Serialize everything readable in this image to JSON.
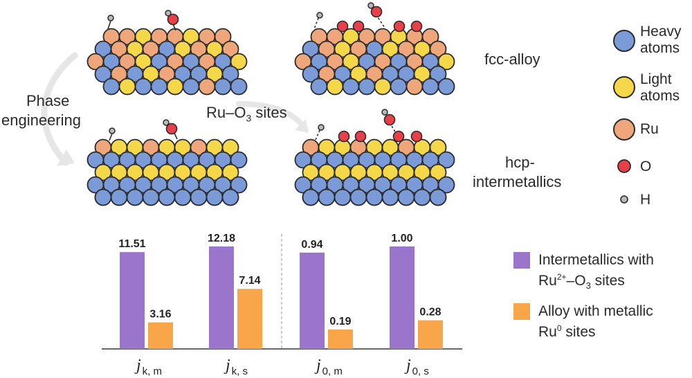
{
  "labels": {
    "fcc": "fcc-alloy",
    "hcp_line1": "hcp-",
    "hcp_line2": "intermetallics",
    "phase_line1": "Phase",
    "phase_line2": "engineering",
    "ru_o3_prefix": "Ru–O",
    "ru_o3_sub": "3",
    "ru_o3_suffix": " sites"
  },
  "atom_legend": {
    "heavy_1": "Heavy",
    "heavy_2": "atoms",
    "light_1": "Light",
    "light_2": "atoms",
    "ru": "Ru",
    "o": "O",
    "h": "H"
  },
  "colors": {
    "heavy": "#7b9bd8",
    "light": "#f5d84a",
    "ru": "#eea67a",
    "o": "#e8404a",
    "h": "#b9b9b9",
    "purple": "#9b74cc",
    "orange": "#f9a54a"
  },
  "bar_legend": {
    "purple_1": "Intermetallics with",
    "purple_2_a": "Ru",
    "purple_2_sup": "2+",
    "purple_2_b": "–O",
    "purple_2_sub": "3",
    "purple_2_c": " sites",
    "orange_1": "Alloy with metallic",
    "orange_2_a": "Ru",
    "orange_2_sup": "0",
    "orange_2_b": " sites"
  },
  "chart_data": {
    "type": "bar",
    "categories": [
      "j_k,m",
      "j_k,s",
      "j_0,m",
      "j_0,s"
    ],
    "series": [
      {
        "name": "Intermetallics with Ru2+–O3 sites",
        "values": [
          11.51,
          12.18,
          0.94,
          1.0
        ],
        "labels": [
          "11.51",
          "12.18",
          "0.94",
          "1.00"
        ]
      },
      {
        "name": "Alloy with metallic Ru0 sites",
        "values": [
          3.16,
          7.14,
          0.19,
          0.28
        ],
        "labels": [
          "3.16",
          "7.14",
          "0.19",
          "0.28"
        ]
      }
    ],
    "groups_scale_max": [
      12.18,
      1.0
    ],
    "tick_labels": [
      {
        "main": "j",
        "sub": "k, m"
      },
      {
        "main": "j",
        "sub": "k, s"
      },
      {
        "main": "j",
        "sub": "0, m"
      },
      {
        "main": "j",
        "sub": "0, s"
      }
    ]
  }
}
